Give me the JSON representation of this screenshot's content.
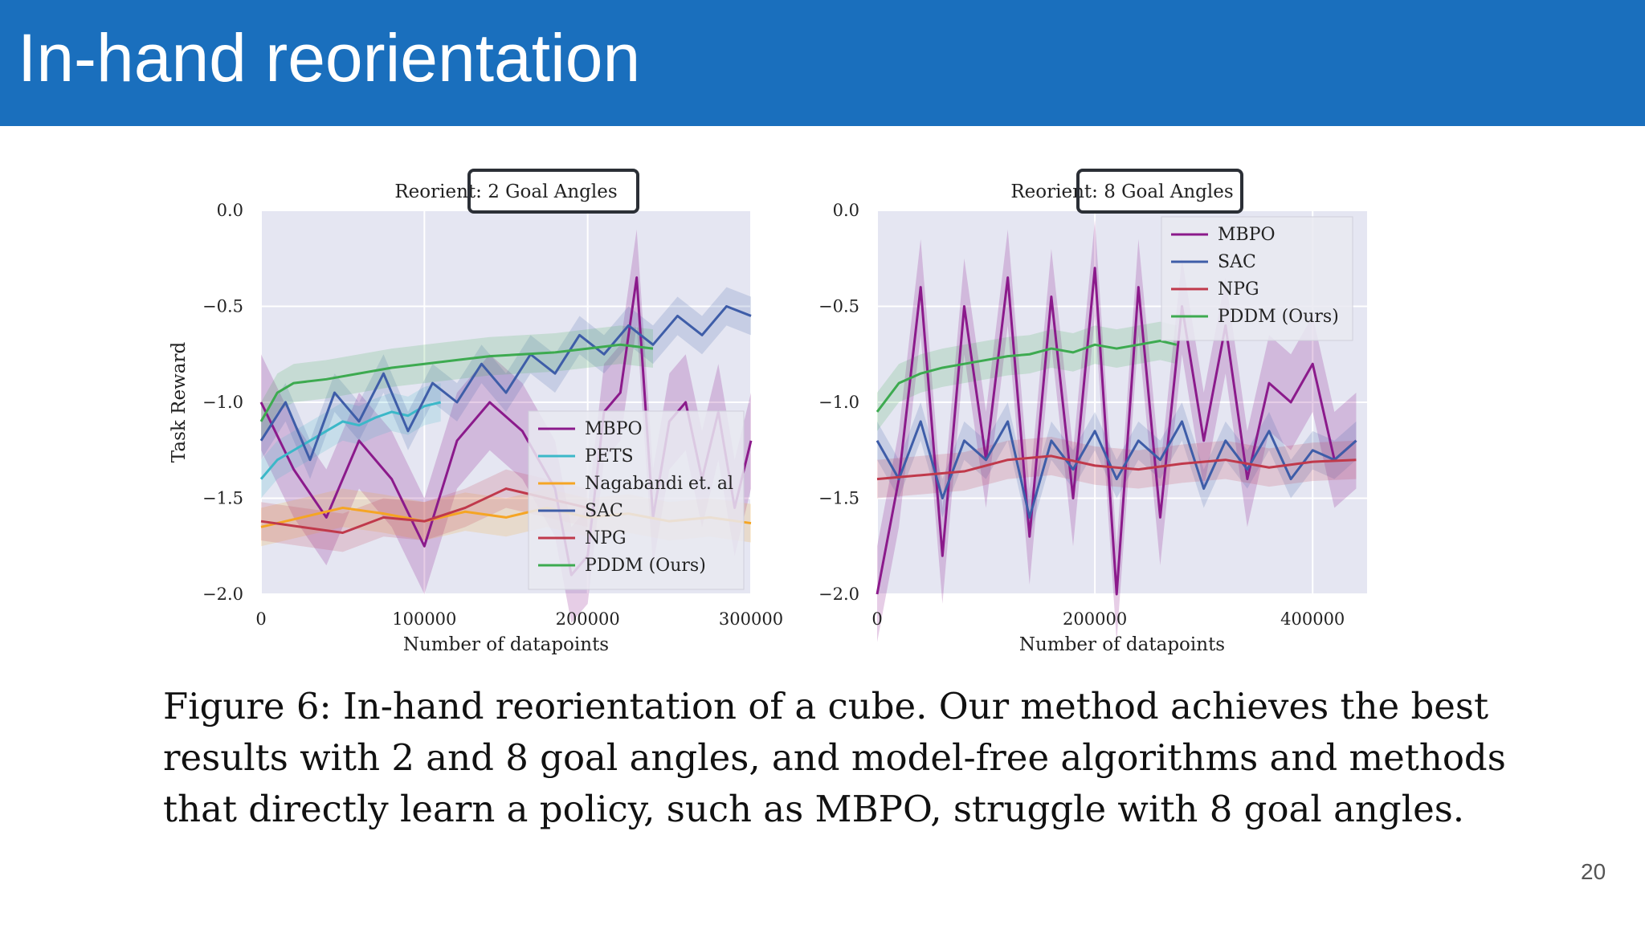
{
  "slide": {
    "title": "In-hand reorientation",
    "page_number": "20"
  },
  "caption": {
    "lines": [
      "Figure 6: In-hand reorientation of a cube. Our method achieves the best",
      "results with 2 and 8 goal angles, and model-free algorithms and methods",
      "that directly learn a policy, such as MBPO, struggle with 8 goal angles."
    ]
  },
  "colors": {
    "banner": "#1a6fbd",
    "plot_bg": "#e5e6f2",
    "MBPO": "#8b1a8b",
    "PETS": "#3bb8c8",
    "Nagabandi et. al": "#f5a524",
    "SAC": "#3e5da8",
    "NPG": "#c0394b",
    "PDDM (Ours)": "#3daa50"
  },
  "chart_data": [
    {
      "type": "line",
      "title_parts": [
        "Reorient: ",
        "2 Goal Angles"
      ],
      "xlabel": "Number of datapoints",
      "ylabel": "Task Reward",
      "xlim": [
        0,
        300000
      ],
      "ylim": [
        -2.0,
        0.0
      ],
      "x_ticks": [
        0,
        100000,
        200000,
        300000
      ],
      "x_tick_labels": [
        "0",
        "100000",
        "200000",
        "300000"
      ],
      "y_ticks": [
        0.0,
        -0.5,
        -1.0,
        -1.5,
        -2.0
      ],
      "y_tick_labels": [
        "0.0",
        "−0.5",
        "−1.0",
        "−1.5",
        "−2.0"
      ],
      "grid": true,
      "legend_placement": "lower-right",
      "series": [
        {
          "name": "MBPO",
          "x": [
            0,
            20000,
            40000,
            60000,
            80000,
            100000,
            120000,
            140000,
            160000,
            180000,
            190000,
            200000,
            210000,
            220000,
            230000,
            240000,
            250000,
            260000,
            270000,
            280000,
            290000,
            300000
          ],
          "y": [
            -1.0,
            -1.35,
            -1.6,
            -1.2,
            -1.4,
            -1.75,
            -1.2,
            -1.0,
            -1.15,
            -1.45,
            -1.9,
            -1.8,
            -1.05,
            -0.95,
            -0.35,
            -1.6,
            -1.1,
            -1.0,
            -1.4,
            -1.05,
            -1.55,
            -1.2
          ]
        },
        {
          "name": "PETS",
          "x": [
            0,
            10000,
            20000,
            30000,
            40000,
            50000,
            60000,
            70000,
            80000,
            90000,
            100000,
            110000
          ],
          "y": [
            -1.4,
            -1.3,
            -1.25,
            -1.2,
            -1.15,
            -1.1,
            -1.12,
            -1.08,
            -1.05,
            -1.07,
            -1.02,
            -1.0
          ]
        },
        {
          "name": "Nagabandi et. al",
          "x": [
            0,
            25000,
            50000,
            75000,
            100000,
            125000,
            150000,
            175000,
            200000,
            225000,
            250000,
            275000,
            300000
          ],
          "y": [
            -1.65,
            -1.6,
            -1.55,
            -1.58,
            -1.62,
            -1.57,
            -1.6,
            -1.55,
            -1.6,
            -1.58,
            -1.62,
            -1.6,
            -1.63
          ]
        },
        {
          "name": "SAC",
          "x": [
            0,
            15000,
            30000,
            45000,
            60000,
            75000,
            90000,
            105000,
            120000,
            135000,
            150000,
            165000,
            180000,
            195000,
            210000,
            225000,
            240000,
            255000,
            270000,
            285000,
            300000
          ],
          "y": [
            -1.2,
            -1.0,
            -1.3,
            -0.95,
            -1.1,
            -0.85,
            -1.15,
            -0.9,
            -1.0,
            -0.8,
            -0.95,
            -0.75,
            -0.85,
            -0.65,
            -0.75,
            -0.6,
            -0.7,
            -0.55,
            -0.65,
            -0.5,
            -0.55
          ]
        },
        {
          "name": "NPG",
          "x": [
            0,
            25000,
            50000,
            75000,
            100000,
            125000,
            150000,
            175000,
            200000
          ],
          "y": [
            -1.62,
            -1.65,
            -1.68,
            -1.6,
            -1.62,
            -1.55,
            -1.45,
            -1.5,
            -1.55
          ]
        },
        {
          "name": "PDDM (Ours)",
          "x": [
            0,
            10000,
            20000,
            40000,
            60000,
            80000,
            100000,
            120000,
            140000,
            160000,
            180000,
            200000,
            220000,
            240000
          ],
          "y": [
            -1.1,
            -0.95,
            -0.9,
            -0.88,
            -0.85,
            -0.82,
            -0.8,
            -0.78,
            -0.76,
            -0.75,
            -0.74,
            -0.72,
            -0.7,
            -0.72
          ]
        }
      ]
    },
    {
      "type": "line",
      "title_parts": [
        "Reorient: ",
        "8 Goal Angles"
      ],
      "xlabel": "Number of datapoints",
      "ylabel": "",
      "xlim": [
        0,
        450000
      ],
      "ylim": [
        -2.0,
        0.0
      ],
      "x_ticks": [
        0,
        200000,
        400000
      ],
      "x_tick_labels": [
        "0",
        "200000",
        "400000"
      ],
      "y_ticks": [
        0.0,
        -0.5,
        -1.0,
        -1.5,
        -2.0
      ],
      "y_tick_labels": [
        "0.0",
        "−0.5",
        "−1.0",
        "−1.5",
        "−2.0"
      ],
      "grid": true,
      "legend_placement": "upper-right",
      "series": [
        {
          "name": "MBPO",
          "x": [
            0,
            20000,
            40000,
            60000,
            80000,
            100000,
            120000,
            140000,
            160000,
            180000,
            200000,
            220000,
            240000,
            260000,
            280000,
            300000,
            320000,
            340000,
            360000,
            380000,
            400000,
            420000,
            440000
          ],
          "y": [
            -2.0,
            -1.4,
            -0.4,
            -1.8,
            -0.5,
            -1.3,
            -0.35,
            -1.7,
            -0.45,
            -1.5,
            -0.3,
            -2.0,
            -0.4,
            -1.6,
            -0.5,
            -1.2,
            -0.6,
            -1.4,
            -0.9,
            -1.0,
            -0.8,
            -1.3,
            -1.2
          ]
        },
        {
          "name": "SAC",
          "x": [
            0,
            20000,
            40000,
            60000,
            80000,
            100000,
            120000,
            140000,
            160000,
            180000,
            200000,
            220000,
            240000,
            260000,
            280000,
            300000,
            320000,
            340000,
            360000,
            380000,
            400000,
            420000,
            440000
          ],
          "y": [
            -1.2,
            -1.4,
            -1.1,
            -1.5,
            -1.2,
            -1.3,
            -1.1,
            -1.6,
            -1.2,
            -1.35,
            -1.15,
            -1.4,
            -1.2,
            -1.3,
            -1.1,
            -1.45,
            -1.2,
            -1.35,
            -1.15,
            -1.4,
            -1.25,
            -1.3,
            -1.2
          ]
        },
        {
          "name": "NPG",
          "x": [
            0,
            40000,
            80000,
            120000,
            160000,
            200000,
            240000,
            280000,
            320000,
            360000,
            400000,
            440000
          ],
          "y": [
            -1.4,
            -1.38,
            -1.36,
            -1.3,
            -1.28,
            -1.33,
            -1.35,
            -1.32,
            -1.3,
            -1.34,
            -1.31,
            -1.3
          ]
        },
        {
          "name": "PDDM (Ours)",
          "x": [
            0,
            20000,
            40000,
            60000,
            80000,
            100000,
            120000,
            140000,
            160000,
            180000,
            200000,
            220000,
            240000,
            260000,
            275000
          ],
          "y": [
            -1.05,
            -0.9,
            -0.85,
            -0.82,
            -0.8,
            -0.78,
            -0.76,
            -0.75,
            -0.72,
            -0.74,
            -0.7,
            -0.72,
            -0.7,
            -0.68,
            -0.7
          ]
        }
      ]
    }
  ]
}
